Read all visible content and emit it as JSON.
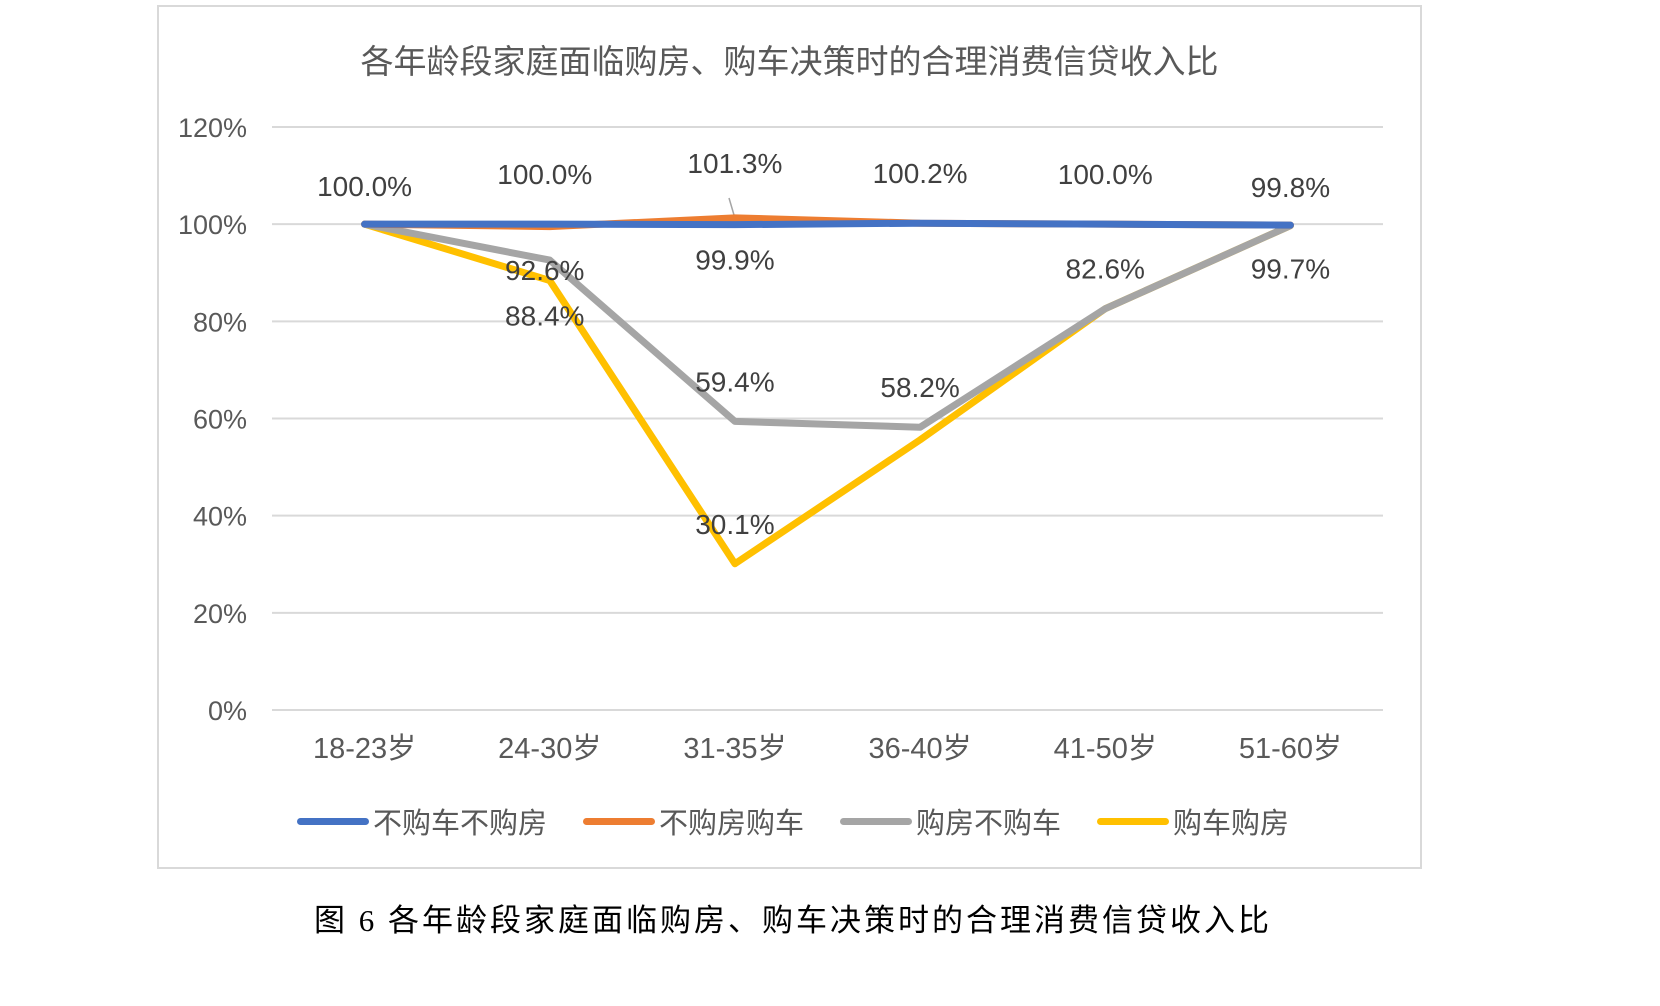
{
  "chart_data": {
    "type": "line",
    "title": "各年龄段家庭面临购房、购车决策时的合理消费信贷收入比",
    "categories": [
      "18-23岁",
      "24-30岁",
      "31-35岁",
      "36-40岁",
      "41-50岁",
      "51-60岁"
    ],
    "ylim": [
      0,
      120
    ],
    "yticks": [
      0,
      20,
      40,
      60,
      80,
      100,
      120
    ],
    "ytick_labels": [
      "0%",
      "20%",
      "40%",
      "60%",
      "80%",
      "100%",
      "120%"
    ],
    "grid": true,
    "legend_position": "bottom",
    "series": [
      {
        "name": "不购车不购房",
        "color": "#4472c4",
        "values": [
          100.0,
          100.0,
          99.9,
          100.2,
          100.0,
          99.8
        ]
      },
      {
        "name": "不购房购车",
        "color": "#ed7d31",
        "values": [
          100.0,
          99.5,
          101.3,
          100.2,
          100.0,
          99.8
        ]
      },
      {
        "name": "购房不购车",
        "color": "#a5a5a5",
        "values": [
          100.0,
          92.6,
          59.4,
          58.2,
          82.6,
          99.7
        ]
      },
      {
        "name": "购车购房",
        "color": "#ffc000",
        "values": [
          100.0,
          88.4,
          30.1,
          55.6,
          82.6,
          99.7
        ]
      }
    ],
    "data_labels": [
      {
        "text": "100.0%",
        "series": 0,
        "point": 0,
        "pos": "above"
      },
      {
        "text": "100.0%",
        "series": 0,
        "point": 1,
        "pos": "above"
      },
      {
        "text": "101.3%",
        "series": 1,
        "point": 2,
        "pos": "above"
      },
      {
        "text": "100.2%",
        "series": 1,
        "point": 3,
        "pos": "above"
      },
      {
        "text": "100.0%",
        "series": 0,
        "point": 4,
        "pos": "above"
      },
      {
        "text": "99.8%",
        "series": 0,
        "point": 5,
        "pos": "above"
      },
      {
        "text": "92.6%",
        "series": 2,
        "point": 1,
        "pos": "upper"
      },
      {
        "text": "99.9%",
        "series": 0,
        "point": 2,
        "pos": "below"
      },
      {
        "text": "82.6%",
        "series": 2,
        "point": 4,
        "pos": "above"
      },
      {
        "text": "99.7%",
        "series": 2,
        "point": 5,
        "pos": "below"
      },
      {
        "text": "88.4%",
        "series": 3,
        "point": 1,
        "pos": "below"
      },
      {
        "text": "59.4%",
        "series": 2,
        "point": 2,
        "pos": "above"
      },
      {
        "text": "58.2%",
        "series": 2,
        "point": 3,
        "pos": "above"
      },
      {
        "text": "30.1%",
        "series": 3,
        "point": 2,
        "pos": "above"
      }
    ]
  },
  "caption": "图 6 各年龄段家庭面临购房、购车决策时的合理消费信贷收入比"
}
